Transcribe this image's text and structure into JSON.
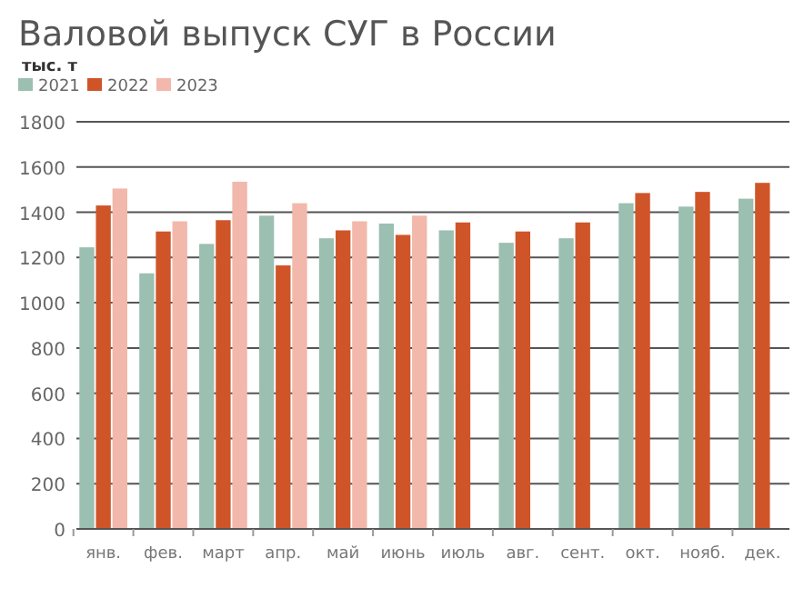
{
  "chart_data": {
    "type": "bar",
    "title": "Валовой выпуск СУГ в России",
    "ylabel": "тыс. т",
    "categories": [
      "янв.",
      "фев.",
      "март",
      "апр.",
      "май",
      "июнь",
      "июль",
      "авг.",
      "сент.",
      "окт.",
      "нояб.",
      "дек."
    ],
    "series": [
      {
        "name": "2021",
        "color": "#9bbfb1",
        "values": [
          1245,
          1130,
          1260,
          1385,
          1285,
          1350,
          1320,
          1265,
          1285,
          1440,
          1425,
          1460
        ]
      },
      {
        "name": "2022",
        "color": "#cf5529",
        "values": [
          1430,
          1315,
          1365,
          1165,
          1320,
          1300,
          1355,
          1315,
          1355,
          1485,
          1490,
          1530
        ]
      },
      {
        "name": "2023",
        "color": "#f2b8ab",
        "values": [
          1505,
          1360,
          1535,
          1440,
          1360,
          1385,
          null,
          null,
          null,
          null,
          null,
          null
        ]
      }
    ],
    "ylim": [
      0,
      1800
    ],
    "yticks": [
      0,
      200,
      400,
      600,
      800,
      1000,
      1200,
      1400,
      1600,
      1800
    ],
    "grid": "y",
    "legend": "top left"
  }
}
